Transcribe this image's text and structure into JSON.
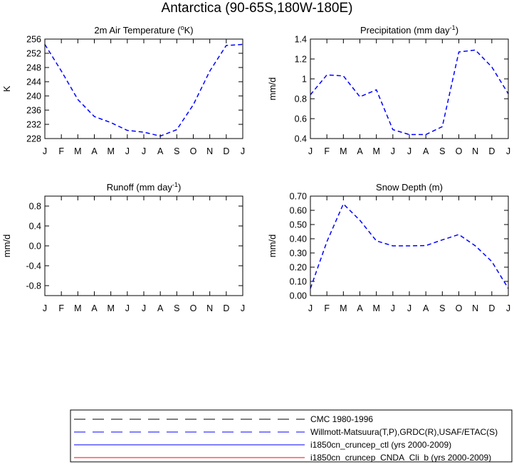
{
  "page_title": "Antarctica (90-65S,180W-180E)",
  "months": [
    "J",
    "F",
    "M",
    "A",
    "M",
    "J",
    "J",
    "A",
    "S",
    "O",
    "N",
    "D",
    "J"
  ],
  "chart_data": [
    {
      "id": "temp",
      "type": "line",
      "title": "2m Air Temperature (",
      "title_sup": "o",
      "title_tail": "K)",
      "ylabel": "K",
      "ylim": [
        228,
        256
      ],
      "yticks": [
        228,
        232,
        236,
        240,
        244,
        248,
        252,
        256
      ],
      "ytick_labels": [
        "228",
        "232",
        "236",
        "240",
        "244",
        "248",
        "252",
        "256"
      ],
      "series": [
        {
          "legend": 1,
          "values": [
            254.5,
            247.0,
            239.0,
            234.2,
            232.5,
            230.3,
            229.8,
            228.7,
            230.5,
            237.5,
            247.0,
            254.2,
            254.5
          ]
        }
      ]
    },
    {
      "id": "precip",
      "type": "line",
      "title": "Precipitation (mm day",
      "title_sup": "-1",
      "title_tail": ")",
      "ylabel": "mm/d",
      "ylim": [
        0.4,
        1.4
      ],
      "yticks": [
        0.4,
        0.6,
        0.8,
        1.0,
        1.2,
        1.4
      ],
      "ytick_labels": [
        "0.4",
        "0.6",
        "0.8",
        "1",
        "1.2",
        "1.4"
      ],
      "series": [
        {
          "legend": 1,
          "values": [
            0.84,
            1.04,
            1.03,
            0.82,
            0.89,
            0.49,
            0.44,
            0.44,
            0.52,
            1.27,
            1.29,
            1.12,
            0.85
          ]
        }
      ]
    },
    {
      "id": "runoff",
      "type": "line",
      "title": "Runoff (mm day",
      "title_sup": "-1",
      "title_tail": ")",
      "ylabel": "mm/d",
      "ylim": [
        -1.0,
        1.0
      ],
      "yticks": [
        -0.8,
        -0.4,
        0.0,
        0.4,
        0.8
      ],
      "ytick_labels": [
        "-0.8",
        "-0.4",
        "0.0",
        "0.4",
        "0.8"
      ],
      "series": []
    },
    {
      "id": "snow",
      "type": "line",
      "title": "Snow Depth (m)",
      "title_sup": "",
      "title_tail": "",
      "ylabel": "mm/d",
      "ylim": [
        0.0,
        0.7
      ],
      "yticks": [
        0.0,
        0.1,
        0.2,
        0.3,
        0.4,
        0.5,
        0.6,
        0.7
      ],
      "ytick_labels": [
        "0.00",
        "0.10",
        "0.20",
        "0.30",
        "0.40",
        "0.50",
        "0.60",
        "0.70"
      ],
      "series": [
        {
          "legend": 1,
          "values": [
            0.05,
            0.38,
            0.645,
            0.53,
            0.385,
            0.35,
            0.35,
            0.352,
            0.392,
            0.43,
            0.35,
            0.24,
            0.05
          ]
        }
      ]
    }
  ],
  "legend": [
    {
      "label": "CMC 1980-1996",
      "color": "#000000",
      "dash": true
    },
    {
      "label": "Willmott-Matsuura(T,P),GRDC(R),USAF/ETAC(S)",
      "color": "#0000ff",
      "dash": true
    },
    {
      "label": "i1850cn_cruncep_ctl (yrs 2000-2009)",
      "color": "#0000ff",
      "dash": false
    },
    {
      "label": "i1850cn_cruncep_CNDA_Cli_b (yrs 2000-2009)",
      "color": "#ff0000",
      "dash": false
    }
  ]
}
